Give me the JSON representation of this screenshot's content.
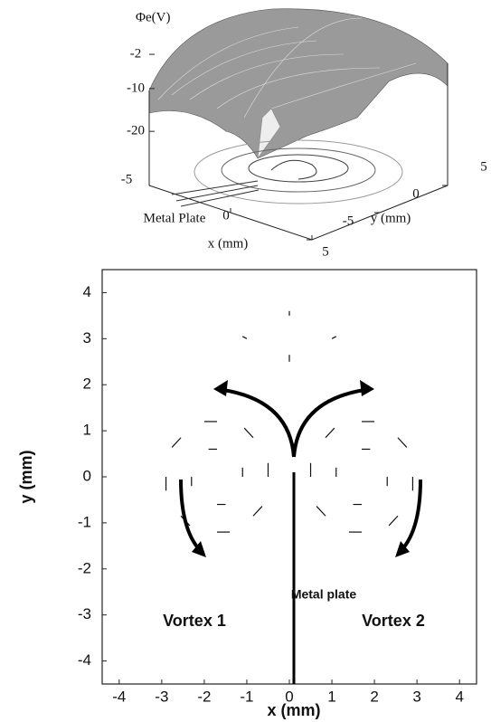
{
  "chart_data": [
    {
      "type": "surface",
      "zlabel": "Φe(V)",
      "xlabel": "x (mm)",
      "ylabel": "y (mm)",
      "annotation": "Metal Plate",
      "zlim": [
        -28,
        0
      ],
      "zticks": [
        -2,
        -10,
        -20
      ],
      "xlim": [
        -5,
        5
      ],
      "xticks": [
        -5,
        0,
        5
      ],
      "ylim": [
        -5,
        5
      ],
      "yticks": [
        -5,
        0,
        5
      ]
    },
    {
      "type": "quiver",
      "xlabel": "x (mm)",
      "ylabel": "y (mm)",
      "xlim": [
        -4.4,
        4.4
      ],
      "xticks": [
        -4,
        -3,
        -2,
        -1,
        0,
        1,
        2,
        3,
        4
      ],
      "ylim": [
        -4.5,
        4.5
      ],
      "yticks": [
        -4,
        -3,
        -2,
        -1,
        0,
        1,
        2,
        3,
        4
      ],
      "annotations": [
        "Metal plate",
        "Vortex 1",
        "Vortex 2"
      ],
      "color": "#111111",
      "x": [
        -0.5,
        -0.85,
        -1.7,
        -2.55,
        -2.9,
        -2.55,
        -1.7,
        -0.85,
        -1.1,
        -1.7,
        -2.3,
        -1.7,
        0.5,
        0.85,
        1.7,
        2.55,
        2.9,
        2.55,
        1.7,
        0.85,
        1.1,
        1.7,
        2.3,
        1.7,
        0,
        -1,
        1,
        0
      ],
      "y": [
        0,
        0.85,
        1.2,
        0.85,
        0,
        -0.85,
        -1.2,
        -0.85,
        0,
        0.6,
        0,
        -0.6,
        0,
        0.85,
        1.2,
        0.85,
        0,
        -0.85,
        -1.2,
        -0.85,
        0,
        0.6,
        0,
        -0.6,
        3.5,
        3,
        3,
        2.5
      ],
      "u": [
        0,
        -0.21,
        -0.3,
        -0.21,
        0,
        0.21,
        0.3,
        0.21,
        0,
        -0.2,
        0,
        0.2,
        0,
        0.21,
        0.3,
        0.21,
        0,
        -0.21,
        -0.3,
        -0.21,
        0,
        0.2,
        0,
        -0.2,
        0,
        -0.1,
        0.1,
        0
      ],
      "v": [
        0.3,
        0.21,
        0,
        -0.21,
        -0.3,
        -0.21,
        0,
        0.21,
        0.2,
        0,
        -0.2,
        0,
        0.3,
        0.21,
        0,
        -0.21,
        -0.3,
        -0.21,
        0,
        0.21,
        0.2,
        0,
        -0.2,
        0,
        0.1,
        0.05,
        0.05,
        0.15
      ]
    }
  ]
}
